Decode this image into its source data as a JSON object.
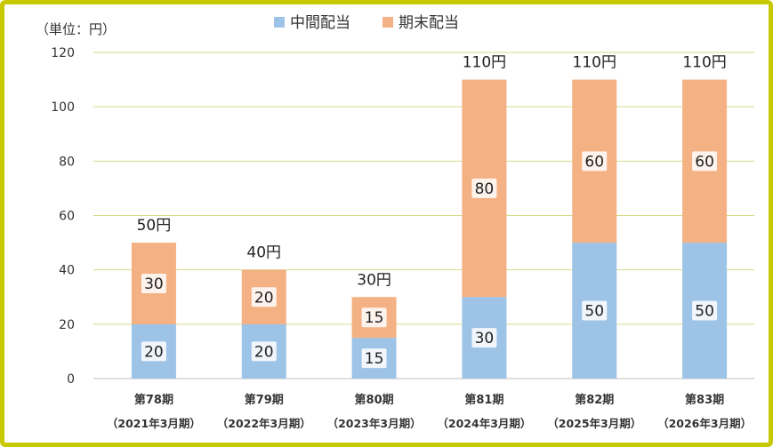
{
  "chart_data": {
    "type": "bar",
    "stacked": true,
    "unit_label": "（単位：円）",
    "categories": [
      "第78期",
      "第79期",
      "第80期",
      "第81期",
      "第82期",
      "第83期"
    ],
    "sublabels": [
      "（2021年3月期）",
      "（2022年3月期）",
      "（2023年3月期）",
      "（2024年3月期）",
      "（2025年3月期）",
      "（2026年3月期）"
    ],
    "series": [
      {
        "name": "中間配当",
        "color": "#9dc3e6",
        "values": [
          20,
          20,
          15,
          30,
          50,
          50
        ]
      },
      {
        "name": "期末配当",
        "color": "#f4b183",
        "values": [
          30,
          20,
          15,
          80,
          60,
          60
        ]
      }
    ],
    "totals": [
      "50円",
      "40円",
      "30円",
      "110円",
      "110円",
      "110円"
    ],
    "yticks": [
      0,
      20,
      40,
      60,
      80,
      100,
      120
    ],
    "ylim": [
      0,
      120
    ],
    "grid": true,
    "gridline_color": "#d9d98a",
    "legend_position": "top"
  }
}
